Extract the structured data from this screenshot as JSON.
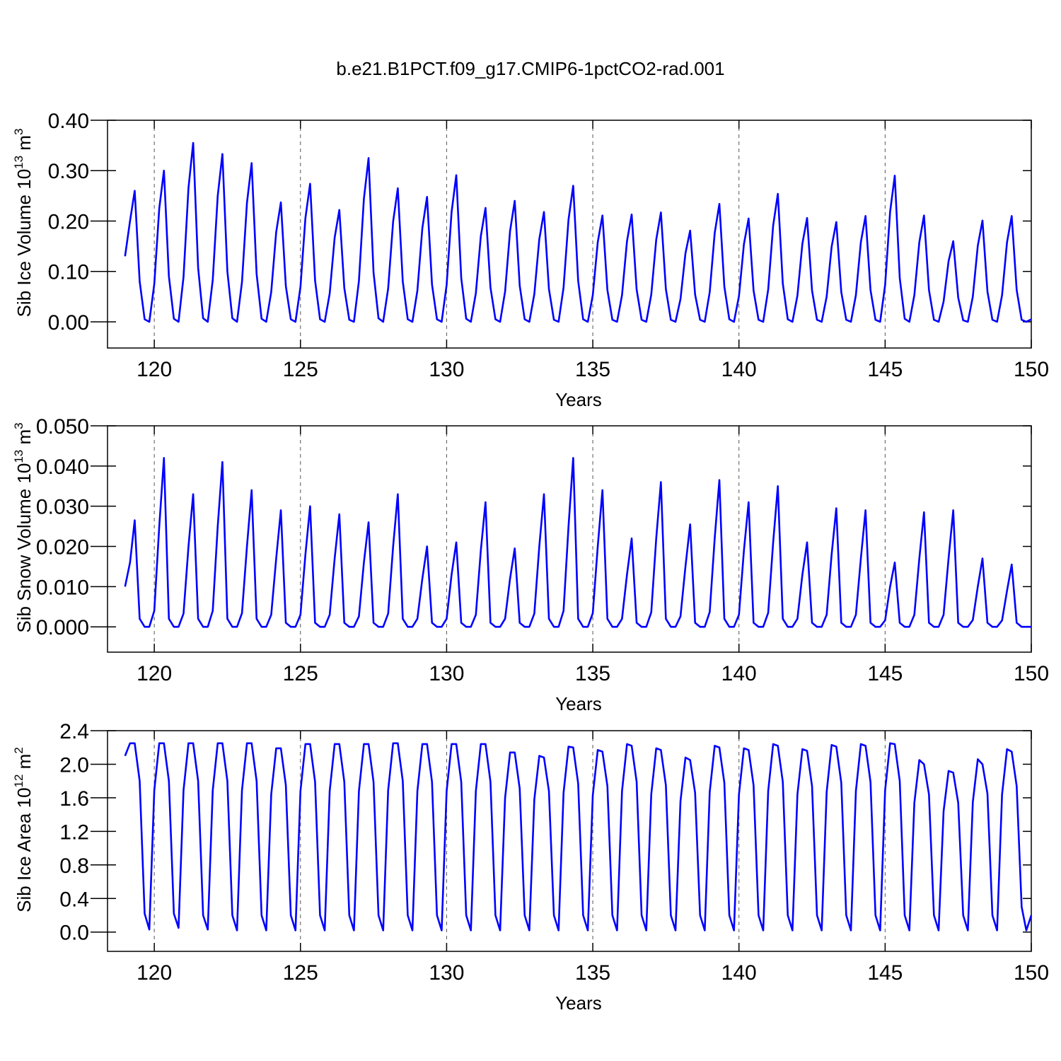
{
  "chart_data": [
    {
      "type": "line",
      "title": "b.e21.B1PCT.f09_g17.CMIP6-1pctCO2-rad.001",
      "xlabel": "Years",
      "ylabel": [
        "Sib Ice Volume 10",
        "13",
        " m",
        "3"
      ],
      "color": "#0000ff",
      "xlim": [
        118.4,
        150
      ],
      "xticks": [
        120,
        125,
        130,
        135,
        140,
        145,
        150
      ],
      "ylim": [
        -0.052,
        0.4
      ],
      "yticks": [
        {
          "value": 0,
          "label": "0.00"
        },
        {
          "value": 0.1,
          "label": "0.10"
        },
        {
          "value": 0.2,
          "label": "0.20"
        },
        {
          "value": 0.3,
          "label": "0.30"
        },
        {
          "value": 0.4,
          "label": "0.40"
        }
      ],
      "x": [
        119,
        119.17,
        119.33,
        119.5,
        119.67,
        119.83,
        120,
        120.17,
        120.33,
        120.5,
        120.67,
        120.83,
        121,
        121.17,
        121.33,
        121.5,
        121.67,
        121.83,
        122,
        122.17,
        122.33,
        122.5,
        122.67,
        122.83,
        123,
        123.17,
        123.33,
        123.5,
        123.67,
        123.83,
        124,
        124.17,
        124.33,
        124.5,
        124.67,
        124.83,
        125,
        125.17,
        125.33,
        125.5,
        125.67,
        125.83,
        126,
        126.17,
        126.33,
        126.5,
        126.67,
        126.83,
        127,
        127.17,
        127.33,
        127.5,
        127.67,
        127.83,
        128,
        128.17,
        128.33,
        128.5,
        128.67,
        128.83,
        129,
        129.17,
        129.33,
        129.5,
        129.67,
        129.83,
        130,
        130.17,
        130.33,
        130.5,
        130.67,
        130.83,
        131,
        131.17,
        131.33,
        131.5,
        131.67,
        131.83,
        132,
        132.17,
        132.33,
        132.5,
        132.67,
        132.83,
        133,
        133.17,
        133.33,
        133.5,
        133.67,
        133.83,
        134,
        134.17,
        134.33,
        134.5,
        134.67,
        134.83,
        135,
        135.17,
        135.33,
        135.5,
        135.67,
        135.83,
        136,
        136.17,
        136.33,
        136.5,
        136.67,
        136.83,
        137,
        137.17,
        137.33,
        137.5,
        137.67,
        137.83,
        138,
        138.17,
        138.33,
        138.5,
        138.67,
        138.83,
        139,
        139.17,
        139.33,
        139.5,
        139.67,
        139.83,
        140,
        140.17,
        140.33,
        140.5,
        140.67,
        140.83,
        141,
        141.17,
        141.33,
        141.5,
        141.67,
        141.83,
        142,
        142.17,
        142.33,
        142.5,
        142.67,
        142.83,
        143,
        143.17,
        143.33,
        143.5,
        143.67,
        143.83,
        144,
        144.17,
        144.33,
        144.5,
        144.67,
        144.83,
        145,
        145.17,
        145.33,
        145.5,
        145.67,
        145.83,
        146,
        146.17,
        146.33,
        146.5,
        146.67,
        146.83,
        147,
        147.17,
        147.33,
        147.5,
        147.67,
        147.83,
        148,
        148.17,
        148.33,
        148.5,
        148.67,
        148.83,
        149,
        149.17,
        149.33,
        149.5,
        149.67,
        149.83,
        150
      ],
      "values": [
        0.13,
        0.2,
        0.26,
        0.08,
        0.005,
        0,
        0.075,
        0.225,
        0.3,
        0.09,
        0.006,
        0,
        0.089,
        0.266,
        0.355,
        0.107,
        0.007,
        0,
        0.083,
        0.25,
        0.333,
        0.1,
        0.007,
        0,
        0.079,
        0.236,
        0.315,
        0.095,
        0.006,
        0,
        0.059,
        0.178,
        0.237,
        0.071,
        0.005,
        0,
        0.069,
        0.206,
        0.274,
        0.082,
        0.005,
        0,
        0.056,
        0.167,
        0.222,
        0.067,
        0.004,
        0,
        0.081,
        0.244,
        0.325,
        0.098,
        0.007,
        0,
        0.066,
        0.199,
        0.265,
        0.08,
        0.005,
        0,
        0.062,
        0.186,
        0.248,
        0.074,
        0.005,
        0,
        0.073,
        0.218,
        0.291,
        0.087,
        0.006,
        0,
        0.057,
        0.17,
        0.226,
        0.068,
        0.005,
        0,
        0.06,
        0.18,
        0.24,
        0.072,
        0.005,
        0,
        0.055,
        0.164,
        0.218,
        0.065,
        0.004,
        0,
        0.068,
        0.203,
        0.27,
        0.081,
        0.005,
        0,
        0.053,
        0.158,
        0.211,
        0.063,
        0.004,
        0,
        0.053,
        0.16,
        0.213,
        0.064,
        0.004,
        0,
        0.054,
        0.163,
        0.217,
        0.065,
        0.004,
        0,
        0.045,
        0.136,
        0.181,
        0.054,
        0.004,
        0,
        0.059,
        0.176,
        0.234,
        0.07,
        0.005,
        0,
        0.051,
        0.154,
        0.205,
        0.062,
        0.004,
        0,
        0.064,
        0.191,
        0.254,
        0.076,
        0.005,
        0,
        0.052,
        0.155,
        0.206,
        0.062,
        0.004,
        0,
        0.05,
        0.149,
        0.198,
        0.059,
        0.004,
        0,
        0.053,
        0.158,
        0.21,
        0.063,
        0.004,
        0,
        0.073,
        0.218,
        0.29,
        0.087,
        0.006,
        0,
        0.053,
        0.158,
        0.211,
        0.063,
        0.004,
        0,
        0.04,
        0.12,
        0.16,
        0.048,
        0.003,
        0,
        0.05,
        0.151,
        0.201,
        0.06,
        0.004,
        0,
        0.053,
        0.158,
        0.21,
        0.063,
        0.004,
        0,
        0.005
      ]
    },
    {
      "type": "line",
      "xlabel": "Years",
      "ylabel": [
        "Sib Snow Volume 10",
        "13",
        " m",
        "3"
      ],
      "color": "#0000ff",
      "xlim": [
        118.4,
        150
      ],
      "xticks": [
        120,
        125,
        130,
        135,
        140,
        145,
        150
      ],
      "ylim": [
        -0.0063,
        0.05
      ],
      "yticks": [
        {
          "value": 0,
          "label": "0.000"
        },
        {
          "value": 0.01,
          "label": "0.010"
        },
        {
          "value": 0.02,
          "label": "0.020"
        },
        {
          "value": 0.03,
          "label": "0.030"
        },
        {
          "value": 0.04,
          "label": "0.040"
        },
        {
          "value": 0.05,
          "label": "0.050"
        }
      ],
      "x": [
        119,
        119.17,
        119.33,
        119.5,
        119.67,
        119.83,
        120,
        120.17,
        120.33,
        120.5,
        120.67,
        120.83,
        121,
        121.17,
        121.33,
        121.5,
        121.67,
        121.83,
        122,
        122.17,
        122.33,
        122.5,
        122.67,
        122.83,
        123,
        123.17,
        123.33,
        123.5,
        123.67,
        123.83,
        124,
        124.17,
        124.33,
        124.5,
        124.67,
        124.83,
        125,
        125.17,
        125.33,
        125.5,
        125.67,
        125.83,
        126,
        126.17,
        126.33,
        126.5,
        126.67,
        126.83,
        127,
        127.17,
        127.33,
        127.5,
        127.67,
        127.83,
        128,
        128.17,
        128.33,
        128.5,
        128.67,
        128.83,
        129,
        129.17,
        129.33,
        129.5,
        129.67,
        129.83,
        130,
        130.17,
        130.33,
        130.5,
        130.67,
        130.83,
        131,
        131.17,
        131.33,
        131.5,
        131.67,
        131.83,
        132,
        132.17,
        132.33,
        132.5,
        132.67,
        132.83,
        133,
        133.17,
        133.33,
        133.5,
        133.67,
        133.83,
        134,
        134.17,
        134.33,
        134.5,
        134.67,
        134.83,
        135,
        135.17,
        135.33,
        135.5,
        135.67,
        135.83,
        136,
        136.17,
        136.33,
        136.5,
        136.67,
        136.83,
        137,
        137.17,
        137.33,
        137.5,
        137.67,
        137.83,
        138,
        138.17,
        138.33,
        138.5,
        138.67,
        138.83,
        139,
        139.17,
        139.33,
        139.5,
        139.67,
        139.83,
        140,
        140.17,
        140.33,
        140.5,
        140.67,
        140.83,
        141,
        141.17,
        141.33,
        141.5,
        141.67,
        141.83,
        142,
        142.17,
        142.33,
        142.5,
        142.67,
        142.83,
        143,
        143.17,
        143.33,
        143.5,
        143.67,
        143.83,
        144,
        144.17,
        144.33,
        144.5,
        144.67,
        144.83,
        145,
        145.17,
        145.33,
        145.5,
        145.67,
        145.83,
        146,
        146.17,
        146.33,
        146.5,
        146.67,
        146.83,
        147,
        147.17,
        147.33,
        147.5,
        147.67,
        147.83,
        148,
        148.17,
        148.33,
        148.5,
        148.67,
        148.83,
        149,
        149.17,
        149.33,
        149.5,
        149.67,
        149.83,
        150
      ],
      "values": [
        0.01,
        0.016,
        0.0265,
        0.002,
        0,
        0,
        0.004,
        0.025,
        0.042,
        0.002,
        0,
        0,
        0.0033,
        0.02,
        0.033,
        0.002,
        0,
        0,
        0.004,
        0.025,
        0.041,
        0.002,
        0,
        0,
        0.0034,
        0.02,
        0.034,
        0.002,
        0,
        0,
        0.003,
        0.017,
        0.029,
        0.001,
        0,
        0,
        0.003,
        0.018,
        0.03,
        0.001,
        0,
        0,
        0.003,
        0.017,
        0.028,
        0.001,
        0,
        0,
        0.0026,
        0.016,
        0.026,
        0.001,
        0,
        0,
        0.0033,
        0.02,
        0.033,
        0.002,
        0,
        0,
        0.002,
        0.012,
        0.02,
        0.001,
        0,
        0,
        0.002,
        0.013,
        0.021,
        0.001,
        0,
        0,
        0.003,
        0.019,
        0.031,
        0.001,
        0,
        0,
        0.002,
        0.012,
        0.0195,
        0.001,
        0,
        0,
        0.0033,
        0.02,
        0.033,
        0.002,
        0,
        0,
        0.004,
        0.025,
        0.042,
        0.002,
        0,
        0,
        0.0034,
        0.02,
        0.034,
        0.002,
        0,
        0,
        0.002,
        0.013,
        0.022,
        0.001,
        0,
        0,
        0.0036,
        0.022,
        0.036,
        0.002,
        0,
        0,
        0.0026,
        0.015,
        0.0255,
        0.001,
        0,
        0,
        0.0037,
        0.022,
        0.0365,
        0.002,
        0,
        0,
        0.003,
        0.019,
        0.031,
        0.001,
        0,
        0,
        0.0035,
        0.021,
        0.035,
        0.002,
        0,
        0,
        0.002,
        0.013,
        0.021,
        0.001,
        0,
        0,
        0.003,
        0.018,
        0.0295,
        0.001,
        0,
        0,
        0.003,
        0.017,
        0.029,
        0.001,
        0,
        0,
        0.0016,
        0.01,
        0.016,
        0.001,
        0,
        0,
        0.003,
        0.017,
        0.0285,
        0.001,
        0,
        0,
        0.003,
        0.017,
        0.029,
        0.001,
        0,
        0,
        0.0017,
        0.01,
        0.017,
        0.001,
        0,
        0,
        0.0016,
        0.009,
        0.0155,
        0.001,
        0,
        0,
        0
      ]
    },
    {
      "type": "line",
      "xlabel": "Years",
      "ylabel": [
        "Sib Ice Area 10",
        "12",
        " m",
        "2"
      ],
      "color": "#0000ff",
      "xlim": [
        118.4,
        150
      ],
      "xticks": [
        120,
        125,
        130,
        135,
        140,
        145,
        150
      ],
      "ylim": [
        -0.23,
        2.4
      ],
      "yticks": [
        {
          "value": 0,
          "label": "0.0"
        },
        0.4,
        0.8,
        1.2,
        1.6,
        {
          "value": 2,
          "label": "2.0"
        },
        2.4
      ],
      "x": [
        119,
        119.17,
        119.33,
        119.5,
        119.67,
        119.83,
        120,
        120.17,
        120.33,
        120.5,
        120.67,
        120.83,
        121,
        121.17,
        121.33,
        121.5,
        121.67,
        121.83,
        122,
        122.17,
        122.33,
        122.5,
        122.67,
        122.83,
        123,
        123.17,
        123.33,
        123.5,
        123.67,
        123.83,
        124,
        124.17,
        124.33,
        124.5,
        124.67,
        124.83,
        125,
        125.17,
        125.33,
        125.5,
        125.67,
        125.83,
        126,
        126.17,
        126.33,
        126.5,
        126.67,
        126.83,
        127,
        127.17,
        127.33,
        127.5,
        127.67,
        127.83,
        128,
        128.17,
        128.33,
        128.5,
        128.67,
        128.83,
        129,
        129.17,
        129.33,
        129.5,
        129.67,
        129.83,
        130,
        130.17,
        130.33,
        130.5,
        130.67,
        130.83,
        131,
        131.17,
        131.33,
        131.5,
        131.67,
        131.83,
        132,
        132.17,
        132.33,
        132.5,
        132.67,
        132.83,
        133,
        133.17,
        133.33,
        133.5,
        133.67,
        133.83,
        134,
        134.17,
        134.33,
        134.5,
        134.67,
        134.83,
        135,
        135.17,
        135.33,
        135.5,
        135.67,
        135.83,
        136,
        136.17,
        136.33,
        136.5,
        136.67,
        136.83,
        137,
        137.17,
        137.33,
        137.5,
        137.67,
        137.83,
        138,
        138.17,
        138.33,
        138.5,
        138.67,
        138.83,
        139,
        139.17,
        139.33,
        139.5,
        139.67,
        139.83,
        140,
        140.17,
        140.33,
        140.5,
        140.67,
        140.83,
        141,
        141.17,
        141.33,
        141.5,
        141.67,
        141.83,
        142,
        142.17,
        142.33,
        142.5,
        142.67,
        142.83,
        143,
        143.17,
        143.33,
        143.5,
        143.67,
        143.83,
        144,
        144.17,
        144.33,
        144.5,
        144.67,
        144.83,
        145,
        145.17,
        145.33,
        145.5,
        145.67,
        145.83,
        146,
        146.17,
        146.33,
        146.5,
        146.67,
        146.83,
        147,
        147.17,
        147.33,
        147.5,
        147.67,
        147.83,
        148,
        148.17,
        148.33,
        148.5,
        148.67,
        148.83,
        149,
        149.17,
        149.33,
        149.5,
        149.67,
        149.83,
        150
      ],
      "values": [
        2.1,
        2.25,
        2.25,
        1.8,
        0.22,
        0.03,
        1.69,
        2.25,
        2.25,
        1.8,
        0.22,
        0.05,
        1.69,
        2.25,
        2.25,
        1.8,
        0.2,
        0.03,
        1.69,
        2.25,
        2.25,
        1.8,
        0.2,
        0.02,
        1.69,
        2.25,
        2.25,
        1.8,
        0.2,
        0.02,
        1.64,
        2.19,
        2.19,
        1.75,
        0.2,
        0.02,
        1.68,
        2.24,
        2.24,
        1.79,
        0.2,
        0.02,
        1.68,
        2.24,
        2.24,
        1.79,
        0.2,
        0.02,
        1.68,
        2.24,
        2.24,
        1.79,
        0.2,
        0.02,
        1.69,
        2.25,
        2.25,
        1.8,
        0.2,
        0.02,
        1.68,
        2.24,
        2.24,
        1.79,
        0.2,
        0.02,
        1.68,
        2.24,
        2.24,
        1.79,
        0.2,
        0.02,
        1.68,
        2.24,
        2.24,
        1.79,
        0.2,
        0.02,
        1.6,
        2.14,
        2.14,
        1.71,
        0.2,
        0.02,
        1.58,
        2.1,
        2.08,
        1.68,
        0.2,
        0.02,
        1.66,
        2.21,
        2.2,
        1.77,
        0.2,
        0.02,
        1.63,
        2.17,
        2.15,
        1.74,
        0.2,
        0.02,
        1.68,
        2.24,
        2.22,
        1.79,
        0.2,
        0.02,
        1.64,
        2.19,
        2.17,
        1.75,
        0.2,
        0.02,
        1.56,
        2.08,
        2.05,
        1.66,
        0.2,
        0.02,
        1.67,
        2.22,
        2.2,
        1.78,
        0.2,
        0.02,
        1.64,
        2.19,
        2.17,
        1.75,
        0.2,
        0.02,
        1.68,
        2.24,
        2.22,
        1.79,
        0.2,
        0.02,
        1.64,
        2.18,
        2.16,
        1.74,
        0.2,
        0.02,
        1.67,
        2.23,
        2.21,
        1.78,
        0.2,
        0.02,
        1.68,
        2.24,
        2.22,
        1.79,
        0.2,
        0.02,
        1.69,
        2.25,
        2.24,
        1.8,
        0.2,
        0.02,
        1.54,
        2.05,
        2,
        1.64,
        0.2,
        0.02,
        1.44,
        1.92,
        1.9,
        1.54,
        0.2,
        0.02,
        1.55,
        2.06,
        2,
        1.65,
        0.2,
        0.02,
        1.64,
        2.18,
        2.15,
        1.74,
        0.3,
        0.02,
        0.2
      ]
    }
  ]
}
